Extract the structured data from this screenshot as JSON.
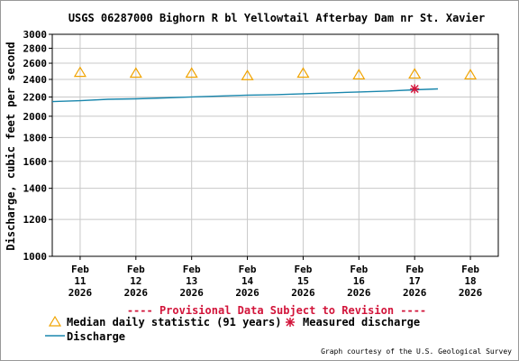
{
  "chart_data": {
    "type": "line",
    "title": "USGS 06287000 Bighorn R bl Yellowtail Afterbay Dam nr St. Xavier",
    "ylabel": "Discharge, cubic feet per second",
    "xlabel": "",
    "y_scale": "log",
    "ylim": [
      1000,
      3000
    ],
    "y_ticks": [
      1000,
      1200,
      1400,
      1600,
      1800,
      2000,
      2200,
      2400,
      2600,
      2800,
      3000
    ],
    "x_range": [
      "2026-02-10T12:00",
      "2026-02-18T12:00"
    ],
    "x_ticks": [
      {
        "date": "2026-02-11",
        "label": [
          "Feb",
          "11",
          "2026"
        ]
      },
      {
        "date": "2026-02-12",
        "label": [
          "Feb",
          "12",
          "2026"
        ]
      },
      {
        "date": "2026-02-13",
        "label": [
          "Feb",
          "13",
          "2026"
        ]
      },
      {
        "date": "2026-02-14",
        "label": [
          "Feb",
          "14",
          "2026"
        ]
      },
      {
        "date": "2026-02-15",
        "label": [
          "Feb",
          "15",
          "2026"
        ]
      },
      {
        "date": "2026-02-16",
        "label": [
          "Feb",
          "16",
          "2026"
        ]
      },
      {
        "date": "2026-02-17",
        "label": [
          "Feb",
          "17",
          "2026"
        ]
      },
      {
        "date": "2026-02-18",
        "label": [
          "Feb",
          "18",
          "2026"
        ]
      }
    ],
    "grid": true,
    "annotation": "---- Provisional Data Subject to Revision ----",
    "series": [
      {
        "name": "Discharge",
        "kind": "line",
        "color": "#1a87ad",
        "points": [
          [
            "2026-02-10T12:00",
            2150
          ],
          [
            "2026-02-11T00:00",
            2160
          ],
          [
            "2026-02-11T12:00",
            2175
          ],
          [
            "2026-02-12T00:00",
            2180
          ],
          [
            "2026-02-12T12:00",
            2190
          ],
          [
            "2026-02-13T00:00",
            2200
          ],
          [
            "2026-02-13T12:00",
            2210
          ],
          [
            "2026-02-14T00:00",
            2220
          ],
          [
            "2026-02-14T12:00",
            2225
          ],
          [
            "2026-02-15T00:00",
            2235
          ],
          [
            "2026-02-15T12:00",
            2245
          ],
          [
            "2026-02-16T00:00",
            2255
          ],
          [
            "2026-02-16T12:00",
            2265
          ],
          [
            "2026-02-17T00:00",
            2280
          ],
          [
            "2026-02-17T10:00",
            2290
          ]
        ]
      },
      {
        "name": "Median daily statistic (91 years)",
        "kind": "triangle",
        "color": "#f0a300",
        "points": [
          [
            "2026-02-11T00:00",
            2480
          ],
          [
            "2026-02-12T00:00",
            2470
          ],
          [
            "2026-02-13T00:00",
            2470
          ],
          [
            "2026-02-14T00:00",
            2440
          ],
          [
            "2026-02-15T00:00",
            2470
          ],
          [
            "2026-02-16T00:00",
            2450
          ],
          [
            "2026-02-17T00:00",
            2460
          ],
          [
            "2026-02-18T00:00",
            2450
          ]
        ]
      },
      {
        "name": "Measured discharge",
        "kind": "asterisk",
        "color": "#d2143a",
        "points": [
          [
            "2026-02-17T00:00",
            2290
          ]
        ]
      }
    ],
    "legend": {
      "placement": "bottom-left",
      "items": [
        {
          "label": "Median daily statistic (91 years)",
          "symbol": "triangle"
        },
        {
          "label": "Measured discharge",
          "symbol": "asterisk"
        },
        {
          "label": "Discharge",
          "symbol": "line"
        }
      ]
    },
    "credit": "Graph courtesy of the U.S. Geological Survey"
  }
}
